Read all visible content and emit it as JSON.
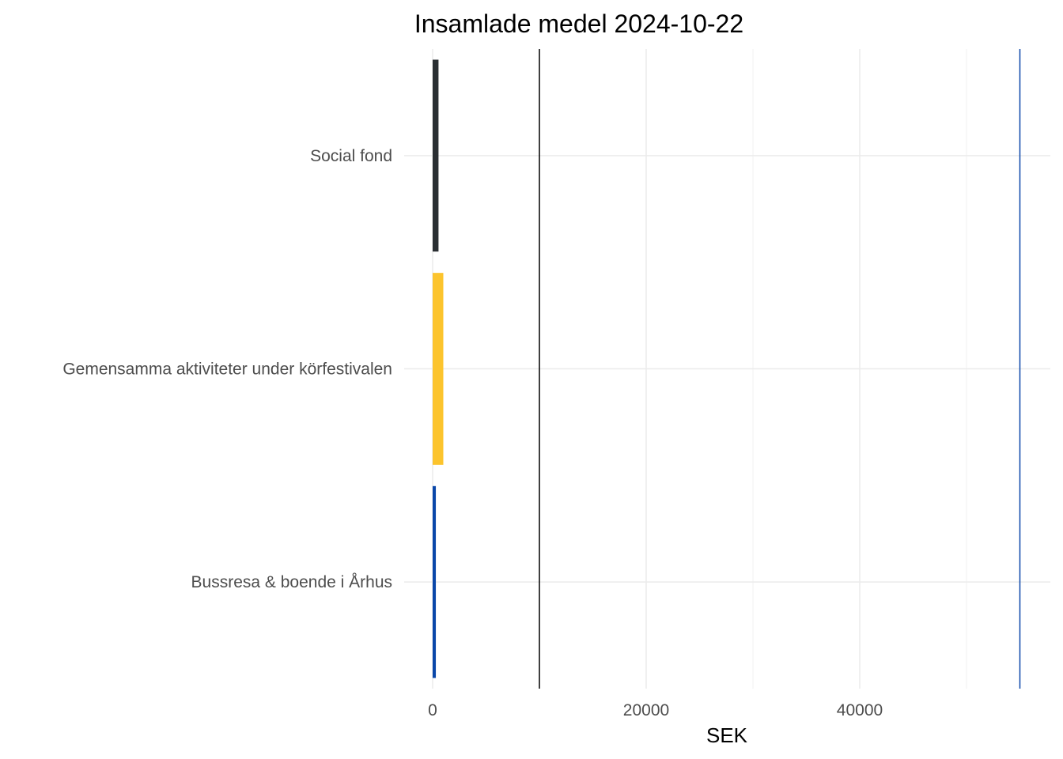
{
  "chart_data": {
    "type": "bar",
    "orientation": "horizontal",
    "title": "Insamlade medel 2024-10-22",
    "xlabel": "SEK",
    "ylabel": "",
    "categories": [
      "Bussresa & boende i Århus",
      "Gemensamma aktiviteter under körfestivalen",
      "Social fond"
    ],
    "values": [
      300,
      1000,
      550
    ],
    "bar_colors": [
      "#0a47a9",
      "#fcc42d",
      "#2a2f33"
    ],
    "xlim": [
      -1000,
      58000
    ],
    "x_ticks": [
      0,
      20000,
      40000
    ],
    "x_tick_labels": [
      "0",
      "20000",
      "40000"
    ],
    "reference_lines": [
      {
        "value": 10000,
        "color": "#000000"
      },
      {
        "value": 55000,
        "color": "#0a47a9"
      }
    ],
    "grid": true,
    "legend": "none"
  }
}
